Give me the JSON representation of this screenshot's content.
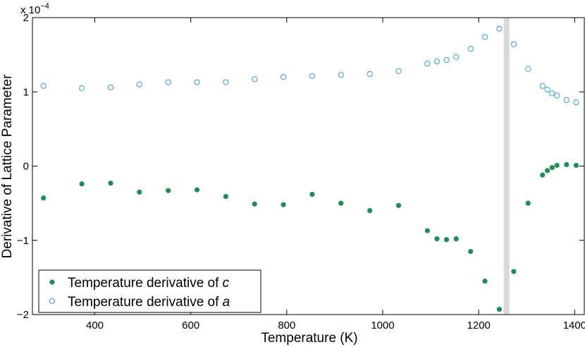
{
  "chart_data": {
    "type": "scatter",
    "xlabel": "Temperature (K)",
    "ylabel": "Derivative of Lattice Parameter",
    "y_multiplier_base": "x 10",
    "y_multiplier_exponent": "−4",
    "xlim": [
      270,
      1420
    ],
    "ylim": [
      -2,
      2
    ],
    "x_ticks": [
      400,
      600,
      800,
      1000,
      1200,
      1400
    ],
    "y_ticks": [
      -2,
      -1,
      0,
      1,
      2
    ],
    "y_tick_labels": [
      "−2",
      "−1",
      "0",
      "1",
      "2"
    ],
    "grid": false,
    "legend_position": "bottom-left",
    "shaded_band": {
      "x_from": 1252,
      "x_to": 1264,
      "color": "#d9d9d9"
    },
    "series": [
      {
        "legend_text": "Temperature derivative of ",
        "legend_var": "c",
        "marker": "filled-circle",
        "color": "#238b55",
        "x": [
          293,
          373,
          433,
          493,
          553,
          613,
          673,
          733,
          793,
          853,
          913,
          973,
          1033,
          1093,
          1113,
          1133,
          1153,
          1183,
          1213,
          1243,
          1273,
          1303,
          1333,
          1343,
          1353,
          1363,
          1383,
          1403
        ],
        "y": [
          -0.43,
          -0.24,
          -0.23,
          -0.35,
          -0.33,
          -0.32,
          -0.41,
          -0.51,
          -0.52,
          -0.38,
          -0.5,
          -0.6,
          -0.53,
          -0.87,
          -0.98,
          -0.99,
          -0.98,
          -1.15,
          -1.55,
          -1.93,
          -1.42,
          -0.5,
          -0.12,
          -0.06,
          -0.02,
          0.01,
          0.02,
          0.01
        ]
      },
      {
        "legend_text": "Temperature derivative of ",
        "legend_var": "a",
        "marker": "open-circle",
        "color": "#3a9ad9",
        "x": [
          293,
          373,
          433,
          493,
          553,
          613,
          673,
          733,
          793,
          853,
          913,
          973,
          1033,
          1093,
          1113,
          1133,
          1153,
          1183,
          1213,
          1243,
          1273,
          1303,
          1333,
          1343,
          1353,
          1363,
          1383,
          1403
        ],
        "y": [
          1.08,
          1.05,
          1.06,
          1.1,
          1.13,
          1.13,
          1.13,
          1.17,
          1.2,
          1.21,
          1.23,
          1.24,
          1.28,
          1.38,
          1.41,
          1.43,
          1.47,
          1.58,
          1.74,
          1.85,
          1.64,
          1.31,
          1.08,
          1.03,
          0.98,
          0.95,
          0.89,
          0.86
        ]
      }
    ]
  }
}
